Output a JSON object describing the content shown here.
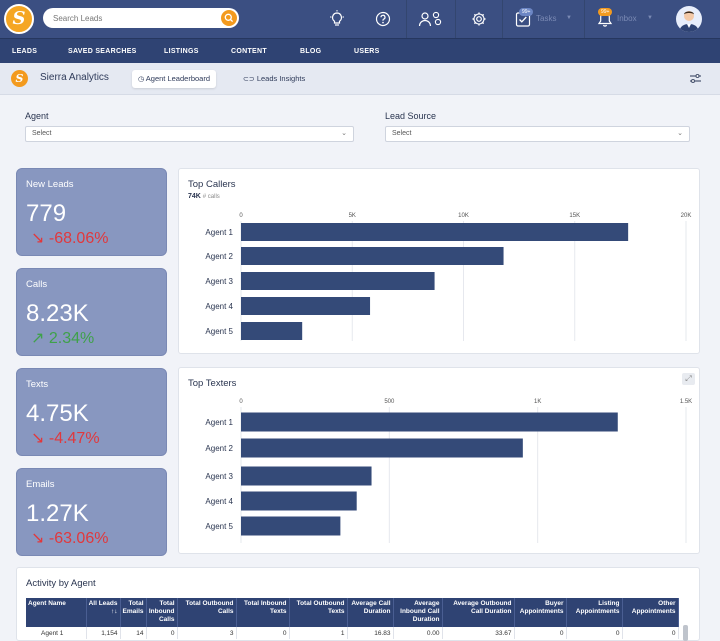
{
  "topbar": {
    "search_placeholder": "Search Leads",
    "tasks_label": "Tasks",
    "tasks_badge": "99+",
    "inbox_label": "Inbox",
    "inbox_badge": "99+"
  },
  "nav": [
    "LEADS",
    "SAVED SEARCHES",
    "LISTINGS",
    "CONTENT",
    "BLOG",
    "USERS"
  ],
  "subheader": {
    "title": "Sierra Analytics",
    "tabs": [
      "Agent Leaderboard",
      "Leads Insights"
    ],
    "active_tab": "Agent Leaderboard"
  },
  "filters": {
    "agent_label": "Agent",
    "agent_value": "Select",
    "source_label": "Lead Source",
    "source_value": "Select"
  },
  "stats": [
    {
      "title": "New Leads",
      "value": "779",
      "change": "-68.06%",
      "direction": "down"
    },
    {
      "title": "Calls",
      "value": "8.23K",
      "change": "2.34%",
      "direction": "up"
    },
    {
      "title": "Texts",
      "value": "4.75K",
      "change": "-4.47%",
      "direction": "down"
    },
    {
      "title": "Emails",
      "value": "1.27K",
      "change": "-63.06%",
      "direction": "down"
    }
  ],
  "colors": {
    "primary": "#3b4f82",
    "nav": "#2f4373",
    "accent": "#f39a1e",
    "bar": "#344a78",
    "card": "#8897c0",
    "negative": "#e1383c",
    "positive": "#3fa14a"
  },
  "chart_data": [
    {
      "type": "bar",
      "orientation": "horizontal",
      "title": "Top Callers",
      "subtitle_value": "74K",
      "subtitle_unit": "# calls",
      "categories": [
        "Agent 1",
        "Agent 2",
        "Agent 3",
        "Agent 4",
        "Agent 5"
      ],
      "values": [
        17400,
        11800,
        8700,
        5800,
        2750
      ],
      "xlim": [
        0,
        20000
      ],
      "ticks": [
        0,
        5000,
        10000,
        15000,
        20000
      ],
      "tick_labels": [
        "0",
        "5K",
        "10K",
        "15K",
        "20K"
      ],
      "grid": true
    },
    {
      "type": "bar",
      "orientation": "horizontal",
      "title": "Top Texters",
      "categories": [
        "Agent 1",
        "Agent 2",
        "Agent 3",
        "Agent 4",
        "Agent 5"
      ],
      "values": [
        1270,
        950,
        440,
        390,
        335
      ],
      "xlim": [
        0,
        1500
      ],
      "ticks": [
        0,
        500,
        1000,
        1500
      ],
      "tick_labels": [
        "0",
        "500",
        "1K",
        "1.5K"
      ],
      "grid": true
    }
  ],
  "activity": {
    "title": "Activity by Agent",
    "headers": [
      "Agent Name",
      "All Leads ↑↓",
      "Total Emails",
      "Total Inbound Calls",
      "Total Outbound Calls",
      "Total Inbound Texts",
      "Total Outbound Texts",
      "Average Call Duration",
      "Average Inbound Call Duration",
      "Average Outbound Call Duration",
      "Buyer Appointments",
      "Listing Appointments",
      "Other Appointments"
    ],
    "rows": [
      [
        "Agent 1",
        "1,154",
        "14",
        "0",
        "3",
        "0",
        "1",
        "16.83",
        "0.00",
        "33.67",
        "0",
        "0",
        "0"
      ]
    ]
  }
}
